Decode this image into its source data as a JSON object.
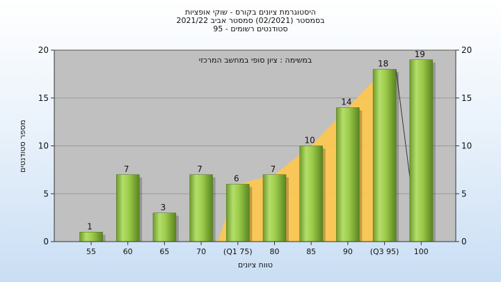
{
  "header": {
    "title_lines": [
      "היסטוגרמת ציונים בקורס - שוקי אופציות",
      "בסמסטר  (02/2021)  סמסטר אביב 2021/22",
      "סטודנטים רשומים - 95"
    ]
  },
  "chart_data": {
    "type": "bar",
    "categories": [
      "55",
      "60",
      "65",
      "70",
      "(Q1 75)",
      "80",
      "85",
      "90",
      "(Q3 95)",
      "100"
    ],
    "values": [
      1,
      7,
      3,
      7,
      6,
      7,
      10,
      14,
      18,
      19
    ],
    "data_labels": [
      "1",
      "7",
      "3",
      "7",
      "6",
      "7",
      "10",
      "14",
      "18",
      "19"
    ],
    "annotation": "במשימה : ציון סופי במחשב המרכזי",
    "xlabel": "טווח ציונים",
    "ylabel": "מספר סטודנטים",
    "ylim": [
      0,
      20
    ],
    "yticks": [
      "0",
      "5",
      "10",
      "15",
      "20"
    ],
    "grid": true,
    "quartile_band": {
      "from_category": "(Q1 75)",
      "to_category": "(Q3 95)"
    },
    "colors": {
      "bar": "#8cbd3c",
      "band": "#ffc84c",
      "plot_background": "#c0c0c0",
      "gridline": "#9a9a9a"
    }
  }
}
